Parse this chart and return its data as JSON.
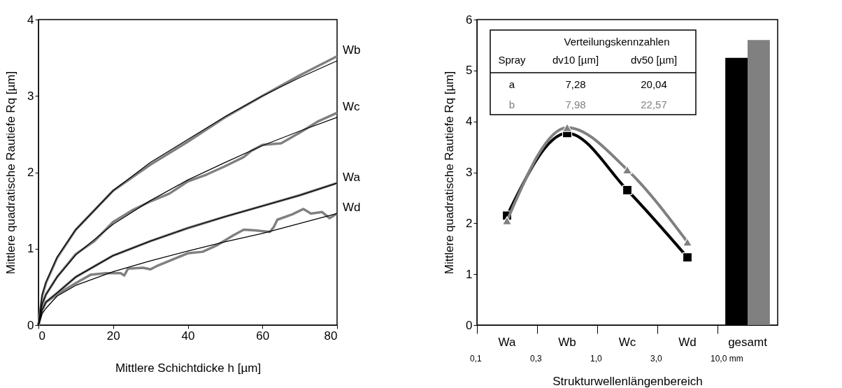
{
  "chart_data": [
    {
      "type": "line",
      "xlabel": "Mittlere Schichtdicke h [µm]",
      "ylabel": "Mittlere quadratische Rautiefe Rq [µm]",
      "xlim": [
        0,
        80
      ],
      "xticks": [
        0,
        20,
        40,
        60,
        80
      ],
      "ylim": [
        0,
        4
      ],
      "yticks": [
        0,
        1,
        2,
        3,
        4
      ],
      "grid": false,
      "legend": false,
      "marker": "none",
      "line_style": "solid",
      "series": [
        {
          "name": "Wb",
          "color": "#808080",
          "x": [
            0,
            1,
            2,
            5,
            10,
            20,
            30,
            40,
            50,
            60,
            70,
            80
          ],
          "values": [
            0,
            0.38,
            0.55,
            0.88,
            1.25,
            1.76,
            2.1,
            2.4,
            2.72,
            3.0,
            3.27,
            3.52
          ]
        },
        {
          "name": "Wc",
          "color": "#808080",
          "x": [
            0,
            1,
            2,
            5,
            10,
            15,
            20,
            25,
            30,
            35,
            40,
            45,
            50,
            55,
            57,
            60,
            65,
            70,
            75,
            80
          ],
          "values": [
            0,
            0.27,
            0.4,
            0.63,
            0.93,
            1.1,
            1.35,
            1.5,
            1.62,
            1.72,
            1.88,
            1.97,
            2.08,
            2.2,
            2.28,
            2.36,
            2.38,
            2.52,
            2.67,
            2.78
          ]
        },
        {
          "name": "Wa",
          "color": "#808080",
          "x": [
            0,
            1,
            2,
            5,
            10,
            20,
            30,
            40,
            50,
            60,
            70,
            80
          ],
          "values": [
            0,
            0.2,
            0.3,
            0.42,
            0.63,
            0.91,
            1.1,
            1.27,
            1.42,
            1.56,
            1.7,
            1.86
          ]
        },
        {
          "name": "Wd",
          "color": "#808080",
          "x": [
            0,
            1,
            2,
            5,
            10,
            14,
            18,
            22,
            23,
            24,
            28,
            30,
            32,
            36,
            40,
            44,
            48,
            52,
            55,
            58,
            62,
            63,
            64,
            68,
            71,
            73,
            76,
            78,
            80
          ],
          "values": [
            0,
            0.2,
            0.3,
            0.4,
            0.55,
            0.66,
            0.68,
            0.68,
            0.65,
            0.74,
            0.75,
            0.73,
            0.78,
            0.86,
            0.94,
            0.96,
            1.05,
            1.17,
            1.25,
            1.24,
            1.22,
            1.28,
            1.38,
            1.45,
            1.52,
            1.46,
            1.48,
            1.4,
            1.46
          ]
        },
        {
          "color": "#000000",
          "x": [
            0,
            1,
            2,
            5,
            10,
            20,
            30,
            40,
            50,
            60,
            70,
            80
          ],
          "values": [
            0,
            0.4,
            0.56,
            0.89,
            1.25,
            1.76,
            2.13,
            2.43,
            2.73,
            3.0,
            3.24,
            3.46
          ]
        },
        {
          "color": "#000000",
          "x": [
            0,
            1,
            2,
            5,
            10,
            20,
            30,
            40,
            50,
            60,
            70,
            80
          ],
          "values": [
            0,
            0.28,
            0.4,
            0.63,
            0.92,
            1.32,
            1.63,
            1.9,
            2.13,
            2.35,
            2.54,
            2.72
          ]
        },
        {
          "color": "#000000",
          "x": [
            0,
            1,
            2,
            5,
            10,
            20,
            30,
            40,
            50,
            60,
            70,
            80
          ],
          "values": [
            0,
            0.2,
            0.3,
            0.42,
            0.63,
            0.91,
            1.1,
            1.27,
            1.42,
            1.56,
            1.7,
            1.86
          ]
        },
        {
          "color": "#000000",
          "x": [
            0,
            1,
            2,
            5,
            10,
            20,
            30,
            40,
            50,
            60,
            70,
            80
          ],
          "values": [
            0,
            0.15,
            0.22,
            0.38,
            0.52,
            0.7,
            0.84,
            0.97,
            1.09,
            1.2,
            1.33,
            1.46
          ]
        }
      ]
    },
    {
      "type": "line",
      "xlabel": "Strukturwellenlängenbereich",
      "ylabel": "Mittlere quadratische Rautiefe Rq [µm]",
      "categories": [
        "Wa",
        "Wb",
        "Wc",
        "Wd",
        "gesamt"
      ],
      "ylim": [
        0,
        6
      ],
      "yticks": [
        0,
        1,
        2,
        3,
        4,
        5,
        6
      ],
      "grid": false,
      "legend": false,
      "series": [
        {
          "type": "line",
          "color": "#000000",
          "marker": "square",
          "values": [
            2.15,
            3.77,
            2.65,
            1.33,
            null
          ]
        },
        {
          "type": "line",
          "color": "#808080",
          "marker": "triangle",
          "values": [
            2.05,
            3.88,
            3.05,
            1.63,
            null
          ]
        },
        {
          "type": "bar",
          "color": "#000000",
          "values": [
            null,
            null,
            null,
            null,
            5.25
          ]
        },
        {
          "type": "bar",
          "color": "#808080",
          "values": [
            null,
            null,
            null,
            null,
            5.6
          ]
        }
      ],
      "annotations": [
        "Verteilungskennzahlen",
        "Spray",
        "dv10 [µm]",
        "dv50 [µm]",
        "a",
        "7,28",
        "20,04",
        "b",
        "7,98",
        "22,57",
        "0,1",
        "0,3",
        "1,0",
        "3,0",
        "10,0 mm"
      ]
    }
  ]
}
